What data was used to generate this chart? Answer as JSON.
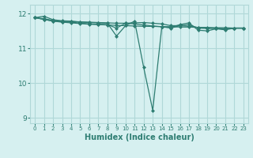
{
  "xlabel": "Humidex (Indice chaleur)",
  "bg_color": "#d6f0f0",
  "grid_color": "#b0d8d8",
  "line_color": "#2e7d72",
  "xlim": [
    -0.5,
    23.5
  ],
  "ylim": [
    8.85,
    12.25
  ],
  "yticks": [
    9,
    10,
    11,
    12
  ],
  "xticks": [
    0,
    1,
    2,
    3,
    4,
    5,
    6,
    7,
    8,
    9,
    10,
    11,
    12,
    13,
    14,
    15,
    16,
    17,
    18,
    19,
    20,
    21,
    22,
    23
  ],
  "series": [
    [
      11.88,
      11.83,
      11.78,
      11.75,
      11.73,
      11.71,
      11.69,
      11.68,
      11.67,
      11.66,
      11.65,
      11.64,
      11.63,
      11.63,
      11.62,
      11.62,
      11.61,
      11.61,
      11.6,
      11.6,
      11.59,
      11.59,
      11.58,
      11.58
    ],
    [
      11.88,
      11.85,
      11.8,
      11.78,
      11.77,
      11.76,
      11.75,
      11.74,
      11.73,
      11.72,
      11.72,
      11.73,
      11.74,
      11.72,
      11.7,
      11.65,
      11.65,
      11.68,
      11.58,
      11.57,
      11.58,
      11.56,
      11.58,
      11.58
    ],
    [
      11.88,
      11.92,
      11.82,
      11.79,
      11.78,
      11.75,
      11.74,
      11.73,
      11.72,
      11.35,
      11.65,
      11.78,
      10.45,
      9.22,
      11.62,
      11.6,
      11.68,
      11.73,
      11.52,
      11.5,
      11.56,
      11.53,
      11.58,
      11.58
    ],
    [
      11.88,
      11.83,
      11.78,
      11.76,
      11.75,
      11.72,
      11.7,
      11.69,
      11.68,
      11.58,
      11.72,
      11.7,
      11.67,
      11.64,
      11.62,
      11.58,
      11.65,
      11.63,
      11.6,
      11.58,
      11.57,
      11.55,
      11.58,
      11.58
    ]
  ]
}
